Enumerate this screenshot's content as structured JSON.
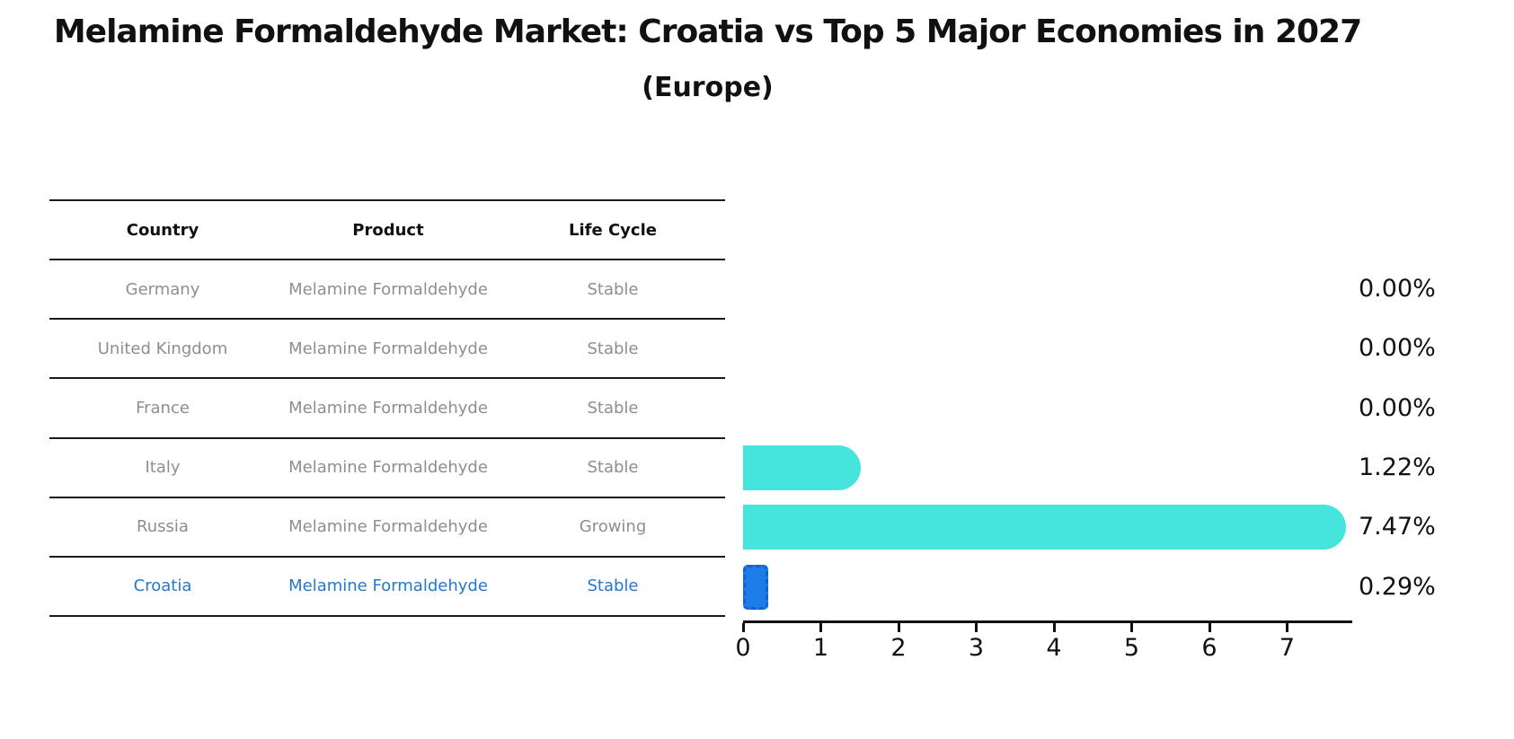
{
  "title": "Melamine Formaldehyde Market: Croatia vs Top 5 Major Economies in 2027",
  "subtitle": "(Europe)",
  "table": {
    "headers": [
      "Country",
      "Product",
      "Life Cycle"
    ],
    "rows": [
      {
        "country": "Germany",
        "product": "Melamine Formaldehyde",
        "life_cycle": "Stable",
        "highlight": false
      },
      {
        "country": "United Kingdom",
        "product": "Melamine Formaldehyde",
        "life_cycle": "Stable",
        "highlight": false
      },
      {
        "country": "France",
        "product": "Melamine Formaldehyde",
        "life_cycle": "Stable",
        "highlight": false
      },
      {
        "country": "Italy",
        "product": "Melamine Formaldehyde",
        "life_cycle": "Stable",
        "highlight": false
      },
      {
        "country": "Russia",
        "product": "Melamine Formaldehyde",
        "life_cycle": "Growing",
        "highlight": false
      },
      {
        "country": "Croatia",
        "product": "Melamine Formaldehyde",
        "life_cycle": "Stable",
        "highlight": true
      }
    ]
  },
  "chart_data": {
    "type": "bar",
    "orientation": "horizontal",
    "title": "Melamine Formaldehyde Market: Croatia vs Top 5 Major Economies in 2027 (Europe)",
    "categories": [
      "Germany",
      "United Kingdom",
      "France",
      "Italy",
      "Russia",
      "Croatia"
    ],
    "values": [
      0.0,
      0.0,
      0.0,
      1.22,
      7.47,
      0.29
    ],
    "value_labels": [
      "0.00%",
      "0.00%",
      "0.00%",
      "1.22%",
      "7.47%",
      "0.29%"
    ],
    "unit": "%",
    "x_ticks": [
      0,
      1,
      2,
      3,
      4,
      5,
      6,
      7
    ],
    "xlim": [
      0,
      7.8
    ],
    "grid": false,
    "legend": "none",
    "highlight_index": 5,
    "colors": {
      "bar": "#45e5db",
      "highlight_bar": "#1e7ce8",
      "highlight_bar_border": "#1063d6",
      "highlight_text": "#2478cc",
      "table_text": "#8e8e8e",
      "axis_text": "#111111"
    }
  }
}
